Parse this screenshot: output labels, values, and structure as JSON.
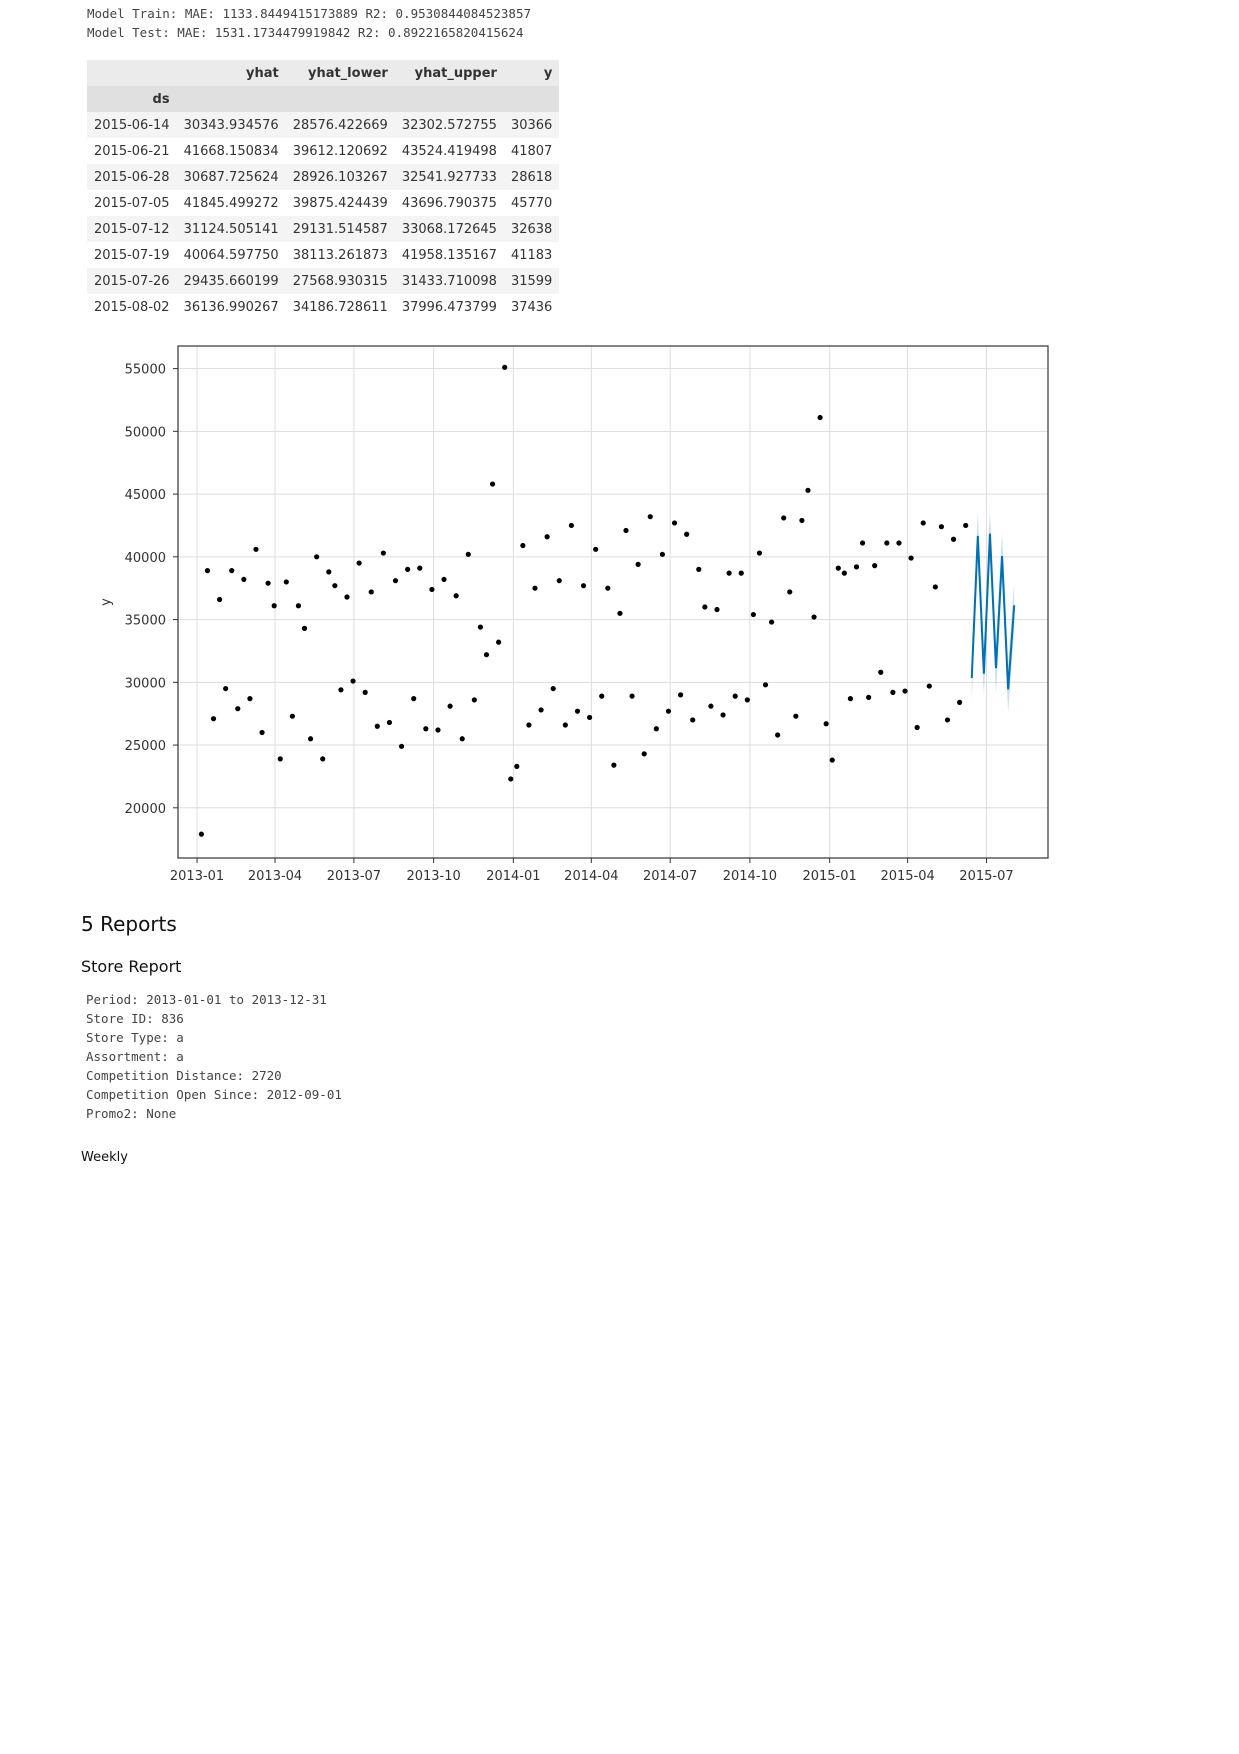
{
  "metrics": {
    "train": "Model Train: MAE: 1133.8449415173889 R2: 0.9530844084523857",
    "test": "Model Test: MAE: 1531.1734479919842 R2: 0.8922165820415624"
  },
  "forecast_table": {
    "columns": [
      "yhat",
      "yhat_lower",
      "yhat_upper",
      "y"
    ],
    "index_name": "ds",
    "rows": [
      {
        "ds": "2015-06-14",
        "yhat": "30343.934576",
        "yhat_lower": "28576.422669",
        "yhat_upper": "32302.572755",
        "y": "30366"
      },
      {
        "ds": "2015-06-21",
        "yhat": "41668.150834",
        "yhat_lower": "39612.120692",
        "yhat_upper": "43524.419498",
        "y": "41807"
      },
      {
        "ds": "2015-06-28",
        "yhat": "30687.725624",
        "yhat_lower": "28926.103267",
        "yhat_upper": "32541.927733",
        "y": "28618"
      },
      {
        "ds": "2015-07-05",
        "yhat": "41845.499272",
        "yhat_lower": "39875.424439",
        "yhat_upper": "43696.790375",
        "y": "45770"
      },
      {
        "ds": "2015-07-12",
        "yhat": "31124.505141",
        "yhat_lower": "29131.514587",
        "yhat_upper": "33068.172645",
        "y": "32638"
      },
      {
        "ds": "2015-07-19",
        "yhat": "40064.597750",
        "yhat_lower": "38113.261873",
        "yhat_upper": "41958.135167",
        "y": "41183"
      },
      {
        "ds": "2015-07-26",
        "yhat": "29435.660199",
        "yhat_lower": "27568.930315",
        "yhat_upper": "31433.710098",
        "y": "31599"
      },
      {
        "ds": "2015-08-02",
        "yhat": "36136.990267",
        "yhat_lower": "34186.728611",
        "yhat_upper": "37996.473799",
        "y": "37436"
      }
    ]
  },
  "chart_data": {
    "type": "scatter",
    "title": "",
    "xlabel": "",
    "ylabel": "y",
    "ylim": [
      16000,
      56800
    ],
    "xlim": [
      "2012-12-10",
      "2015-09-10"
    ],
    "grid": true,
    "x_ticks": [
      "2013-01",
      "2013-04",
      "2013-07",
      "2013-10",
      "2014-01",
      "2014-04",
      "2014-07",
      "2014-10",
      "2015-01",
      "2015-04",
      "2015-07"
    ],
    "y_ticks": [
      "20000",
      "25000",
      "30000",
      "35000",
      "40000",
      "45000",
      "50000",
      "55000"
    ],
    "colors": {
      "points": "#000000",
      "forecast_line": "#0072B2",
      "forecast_band": "#0072B2"
    },
    "series": [
      {
        "kind": "scatter",
        "points": [
          [
            "2013-01-06",
            17900
          ],
          [
            "2013-01-13",
            38900
          ],
          [
            "2013-01-20",
            27100
          ],
          [
            "2013-01-27",
            36600
          ],
          [
            "2013-02-03",
            29500
          ],
          [
            "2013-02-10",
            38900
          ],
          [
            "2013-02-17",
            27900
          ],
          [
            "2013-02-24",
            38200
          ],
          [
            "2013-03-03",
            28700
          ],
          [
            "2013-03-10",
            40600
          ],
          [
            "2013-03-17",
            26000
          ],
          [
            "2013-03-24",
            37900
          ],
          [
            "2013-03-31",
            36100
          ],
          [
            "2013-04-07",
            23900
          ],
          [
            "2013-04-14",
            38000
          ],
          [
            "2013-04-21",
            27300
          ],
          [
            "2013-04-28",
            36100
          ],
          [
            "2013-05-05",
            34300
          ],
          [
            "2013-05-12",
            25500
          ],
          [
            "2013-05-19",
            40000
          ],
          [
            "2013-05-26",
            23900
          ],
          [
            "2013-06-02",
            38800
          ],
          [
            "2013-06-09",
            37700
          ],
          [
            "2013-06-16",
            29400
          ],
          [
            "2013-06-23",
            36800
          ],
          [
            "2013-06-30",
            30100
          ],
          [
            "2013-07-07",
            39500
          ],
          [
            "2013-07-14",
            29200
          ],
          [
            "2013-07-21",
            37200
          ],
          [
            "2013-07-28",
            26500
          ],
          [
            "2013-08-04",
            40300
          ],
          [
            "2013-08-11",
            26800
          ],
          [
            "2013-08-18",
            38100
          ],
          [
            "2013-08-25",
            24900
          ],
          [
            "2013-09-01",
            39000
          ],
          [
            "2013-09-08",
            28700
          ],
          [
            "2013-09-15",
            39100
          ],
          [
            "2013-09-22",
            26300
          ],
          [
            "2013-09-29",
            37400
          ],
          [
            "2013-10-06",
            26200
          ],
          [
            "2013-10-13",
            38200
          ],
          [
            "2013-10-20",
            28100
          ],
          [
            "2013-10-27",
            36900
          ],
          [
            "2013-11-03",
            25500
          ],
          [
            "2013-11-10",
            40200
          ],
          [
            "2013-11-17",
            28600
          ],
          [
            "2013-11-24",
            34400
          ],
          [
            "2013-12-01",
            32200
          ],
          [
            "2013-12-08",
            45800
          ],
          [
            "2013-12-15",
            33200
          ],
          [
            "2013-12-22",
            55100
          ],
          [
            "2013-12-29",
            22300
          ],
          [
            "2014-01-05",
            23300
          ],
          [
            "2014-01-12",
            40900
          ],
          [
            "2014-01-19",
            26600
          ],
          [
            "2014-01-26",
            37500
          ],
          [
            "2014-02-02",
            27800
          ],
          [
            "2014-02-09",
            41600
          ],
          [
            "2014-02-16",
            29500
          ],
          [
            "2014-02-23",
            38100
          ],
          [
            "2014-03-02",
            26600
          ],
          [
            "2014-03-09",
            42500
          ],
          [
            "2014-03-16",
            27700
          ],
          [
            "2014-03-23",
            37700
          ],
          [
            "2014-03-30",
            27200
          ],
          [
            "2014-04-06",
            40600
          ],
          [
            "2014-04-13",
            28900
          ],
          [
            "2014-04-20",
            37500
          ],
          [
            "2014-04-27",
            23400
          ],
          [
            "2014-05-04",
            35500
          ],
          [
            "2014-05-11",
            42100
          ],
          [
            "2014-05-18",
            28900
          ],
          [
            "2014-05-25",
            39400
          ],
          [
            "2014-06-01",
            24300
          ],
          [
            "2014-06-08",
            43200
          ],
          [
            "2014-06-15",
            26300
          ],
          [
            "2014-06-22",
            40200
          ],
          [
            "2014-06-29",
            27700
          ],
          [
            "2014-07-06",
            42700
          ],
          [
            "2014-07-13",
            29000
          ],
          [
            "2014-07-20",
            41800
          ],
          [
            "2014-07-27",
            27000
          ],
          [
            "2014-08-03",
            39000
          ],
          [
            "2014-08-10",
            36000
          ],
          [
            "2014-08-17",
            28100
          ],
          [
            "2014-08-24",
            35800
          ],
          [
            "2014-08-31",
            27400
          ],
          [
            "2014-09-07",
            38700
          ],
          [
            "2014-09-14",
            28900
          ],
          [
            "2014-09-21",
            38700
          ],
          [
            "2014-09-28",
            28600
          ],
          [
            "2014-10-05",
            35400
          ],
          [
            "2014-10-12",
            40300
          ],
          [
            "2014-10-19",
            29800
          ],
          [
            "2014-10-26",
            34800
          ],
          [
            "2014-11-02",
            25800
          ],
          [
            "2014-11-09",
            43100
          ],
          [
            "2014-11-16",
            37200
          ],
          [
            "2014-11-23",
            27300
          ],
          [
            "2014-11-30",
            42900
          ],
          [
            "2014-12-07",
            45300
          ],
          [
            "2014-12-14",
            35200
          ],
          [
            "2014-12-21",
            51100
          ],
          [
            "2014-12-28",
            26700
          ],
          [
            "2015-01-04",
            23800
          ],
          [
            "2015-01-11",
            39100
          ],
          [
            "2015-01-18",
            38700
          ],
          [
            "2015-01-25",
            28700
          ],
          [
            "2015-02-01",
            39200
          ],
          [
            "2015-02-08",
            41100
          ],
          [
            "2015-02-15",
            28800
          ],
          [
            "2015-02-22",
            39300
          ],
          [
            "2015-03-01",
            30800
          ],
          [
            "2015-03-08",
            41100
          ],
          [
            "2015-03-15",
            29200
          ],
          [
            "2015-03-22",
            41100
          ],
          [
            "2015-03-29",
            29300
          ],
          [
            "2015-04-05",
            39900
          ],
          [
            "2015-04-12",
            26400
          ],
          [
            "2015-04-19",
            42700
          ],
          [
            "2015-04-26",
            29700
          ],
          [
            "2015-05-03",
            37600
          ],
          [
            "2015-05-10",
            42400
          ],
          [
            "2015-05-17",
            27000
          ],
          [
            "2015-05-24",
            41400
          ],
          [
            "2015-05-31",
            28400
          ],
          [
            "2015-06-07",
            42500
          ]
        ]
      },
      {
        "kind": "line",
        "x": [
          "2015-06-14",
          "2015-06-21",
          "2015-06-28",
          "2015-07-05",
          "2015-07-12",
          "2015-07-19",
          "2015-07-26",
          "2015-08-02"
        ],
        "y": [
          30343.93,
          41668.15,
          30687.73,
          41845.5,
          31124.51,
          40064.6,
          29435.66,
          36136.99
        ],
        "lower": [
          28576.42,
          39612.12,
          28926.1,
          39875.42,
          29131.51,
          38113.26,
          27568.93,
          34186.73
        ],
        "upper": [
          32302.57,
          43524.42,
          32541.93,
          43696.79,
          33068.17,
          41958.14,
          31433.71,
          37996.47
        ]
      }
    ]
  },
  "reports": {
    "heading": "5 Reports",
    "store_report_heading": "Store Report",
    "store_info": [
      "Period: 2013-01-01 to 2013-12-31",
      "Store ID: 836",
      "Store Type: a",
      "Assortment: a",
      "Competition Distance: 2720",
      "Competition Open Since: 2012-09-01",
      "Promo2: None"
    ],
    "weekly_label": "Weekly"
  }
}
